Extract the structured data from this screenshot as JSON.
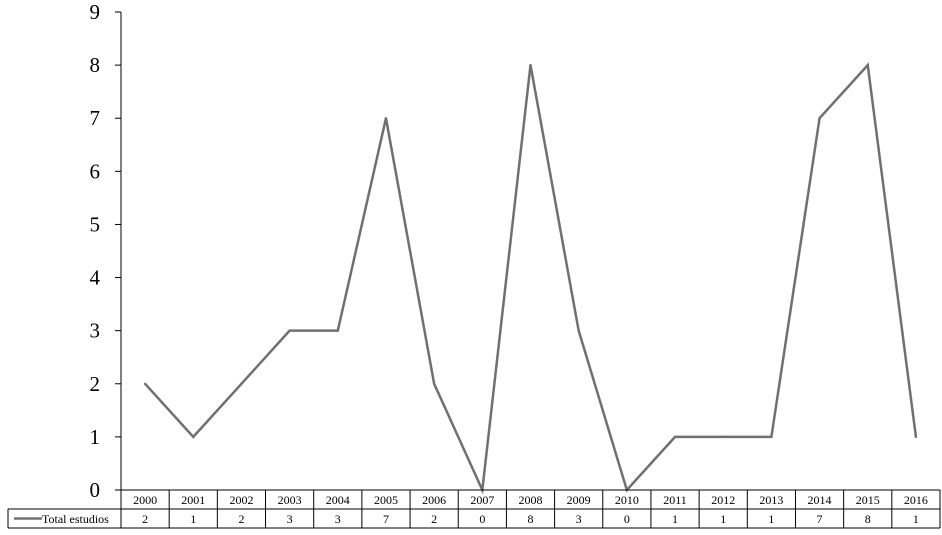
{
  "chart_data": {
    "type": "line",
    "title": "",
    "xlabel": "",
    "ylabel": "",
    "ylim": [
      0,
      9
    ],
    "yticks": [
      0,
      1,
      2,
      3,
      4,
      5,
      6,
      7,
      8,
      9
    ],
    "categories": [
      "2000",
      "2001",
      "2002",
      "2003",
      "2004",
      "2005",
      "2006",
      "2007",
      "2008",
      "2009",
      "2010",
      "2011",
      "2012",
      "2013",
      "2014",
      "2015",
      "2016"
    ],
    "series": [
      {
        "name": "Total estudios",
        "values": [
          2,
          1,
          2,
          3,
          3,
          7,
          2,
          0,
          8,
          3,
          0,
          1,
          1,
          1,
          7,
          8,
          1
        ],
        "color": "#707070"
      }
    ],
    "grid": false,
    "legend": "data-table"
  }
}
